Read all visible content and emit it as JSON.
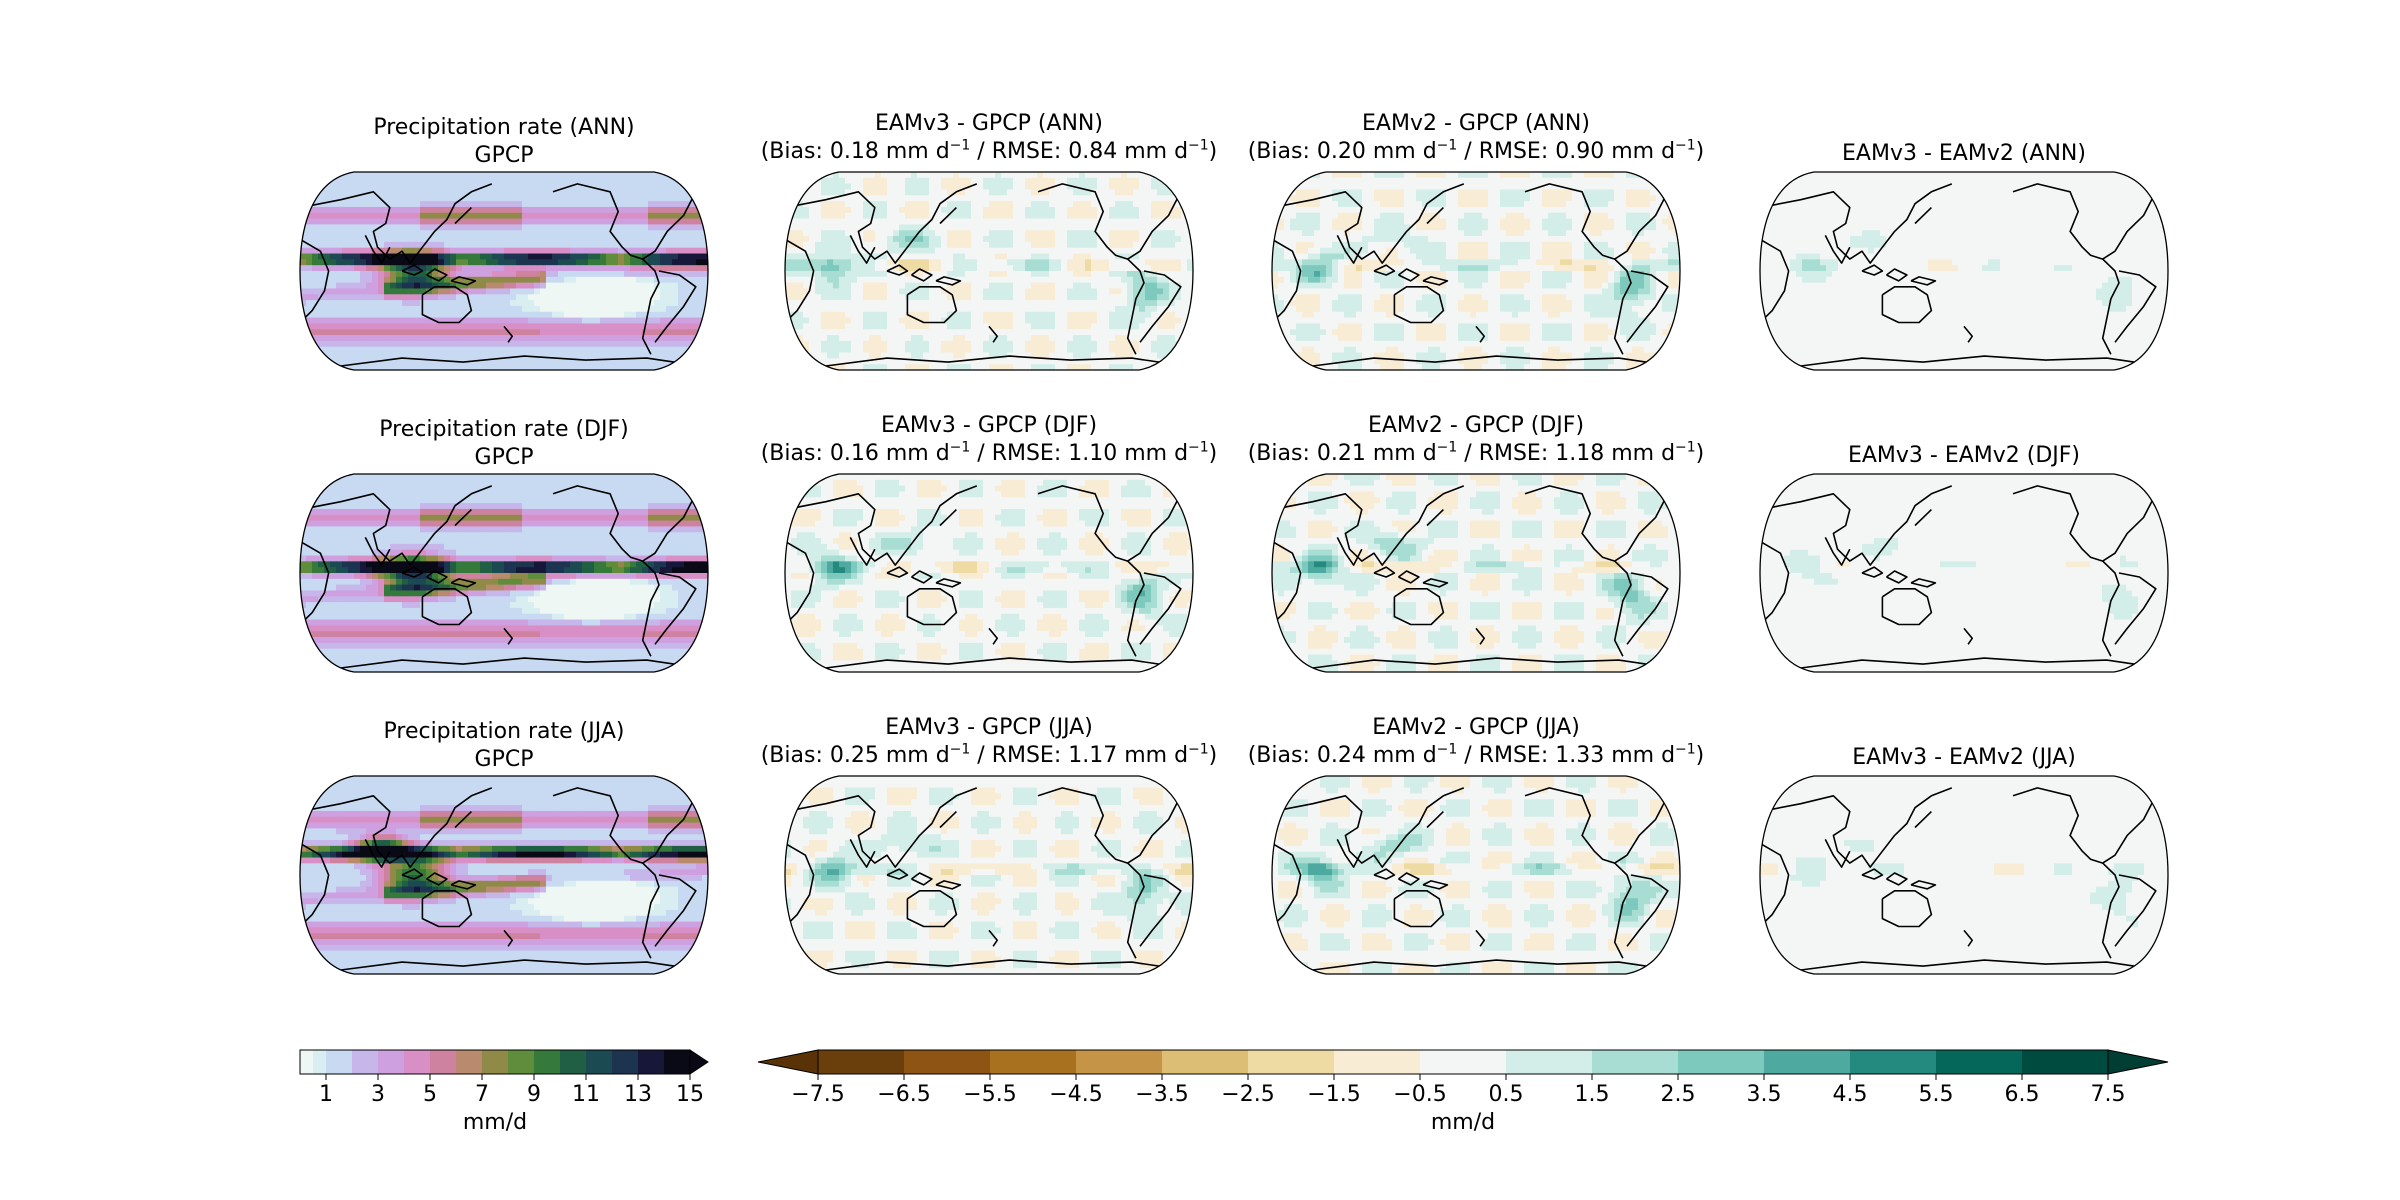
{
  "chart_data": {
    "type": "map-grid",
    "panels": [
      {
        "row": 0,
        "col": 0,
        "kind": "field",
        "title": [
          "Precipitation rate (ANN)",
          "GPCP"
        ]
      },
      {
        "row": 0,
        "col": 1,
        "kind": "diff",
        "title": [
          "EAMv3 - GPCP (ANN)"
        ],
        "bias": "0.18",
        "rmse": "0.84"
      },
      {
        "row": 0,
        "col": 2,
        "kind": "diff",
        "title": [
          "EAMv2 - GPCP (ANN)"
        ],
        "bias": "0.20",
        "rmse": "0.90"
      },
      {
        "row": 0,
        "col": 3,
        "kind": "diff2",
        "title": [
          "EAMv3 - EAMv2 (ANN)"
        ]
      },
      {
        "row": 1,
        "col": 0,
        "kind": "field",
        "title": [
          "Precipitation rate (DJF)",
          "GPCP"
        ]
      },
      {
        "row": 1,
        "col": 1,
        "kind": "diff",
        "title": [
          "EAMv3 - GPCP (DJF)"
        ],
        "bias": "0.16",
        "rmse": "1.10"
      },
      {
        "row": 1,
        "col": 2,
        "kind": "diff",
        "title": [
          "EAMv2 - GPCP (DJF)"
        ],
        "bias": "0.21",
        "rmse": "1.18"
      },
      {
        "row": 1,
        "col": 3,
        "kind": "diff2",
        "title": [
          "EAMv3 - EAMv2 (DJF)"
        ]
      },
      {
        "row": 2,
        "col": 0,
        "kind": "field",
        "title": [
          "Precipitation rate (JJA)",
          "GPCP"
        ]
      },
      {
        "row": 2,
        "col": 1,
        "kind": "diff",
        "title": [
          "EAMv3 - GPCP (JJA)"
        ],
        "bias": "0.25",
        "rmse": "1.17"
      },
      {
        "row": 2,
        "col": 2,
        "kind": "diff",
        "title": [
          "EAMv2 - GPCP (JJA)"
        ],
        "bias": "0.24",
        "rmse": "1.33"
      },
      {
        "row": 2,
        "col": 3,
        "kind": "diff2",
        "title": [
          "EAMv3 - EAMv2 (JJA)"
        ]
      }
    ],
    "bias_prefix": "(Bias: ",
    "rmse_prefix": " / RMSE: ",
    "unit_text": " mm d",
    "unit_exp": "−1",
    "close_paren": ")",
    "colorbar_left": {
      "levels": [
        0,
        0.5,
        1,
        2,
        3,
        4,
        5,
        6,
        7,
        8,
        9,
        10,
        11,
        12,
        13,
        14,
        15
      ],
      "ticks": [
        "1",
        "3",
        "5",
        "7",
        "9",
        "11",
        "13",
        "15"
      ],
      "tick_values": [
        1,
        3,
        5,
        7,
        9,
        11,
        13,
        15
      ],
      "colors": [
        "#eef7f3",
        "#d8eef0",
        "#c8d9f2",
        "#c6b6ea",
        "#cfa0e0",
        "#d88fc6",
        "#cf82a0",
        "#b98a6e",
        "#8f8a48",
        "#5f8d3c",
        "#357a3a",
        "#205f44",
        "#1c4a52",
        "#1c3450",
        "#17173a",
        "#0a0a16"
      ],
      "extend": "max",
      "label": "mm/d"
    },
    "colorbar_right": {
      "levels": [
        -7.5,
        -6.5,
        -5.5,
        -4.5,
        -3.5,
        -2.5,
        -1.5,
        -0.5,
        0.5,
        1.5,
        2.5,
        3.5,
        4.5,
        5.5,
        6.5,
        7.5
      ],
      "ticks": [
        "−7.5",
        "−6.5",
        "−5.5",
        "−4.5",
        "−3.5",
        "−2.5",
        "−1.5",
        "−0.5",
        "0.5",
        "1.5",
        "2.5",
        "3.5",
        "4.5",
        "5.5",
        "6.5",
        "7.5"
      ],
      "colors": [
        "#6b3f0b",
        "#8e5414",
        "#a8711f",
        "#c59446",
        "#ddbe75",
        "#eddba3",
        "#f8ecd5",
        "#f4f6f5",
        "#d3eee9",
        "#a8ddd3",
        "#7dc9bd",
        "#4eaaa0",
        "#24897e",
        "#05675a",
        "#004b3f"
      ],
      "low_color": "#5a3207",
      "high_color": "#003d33",
      "extend": "both",
      "label": "mm/d"
    }
  }
}
